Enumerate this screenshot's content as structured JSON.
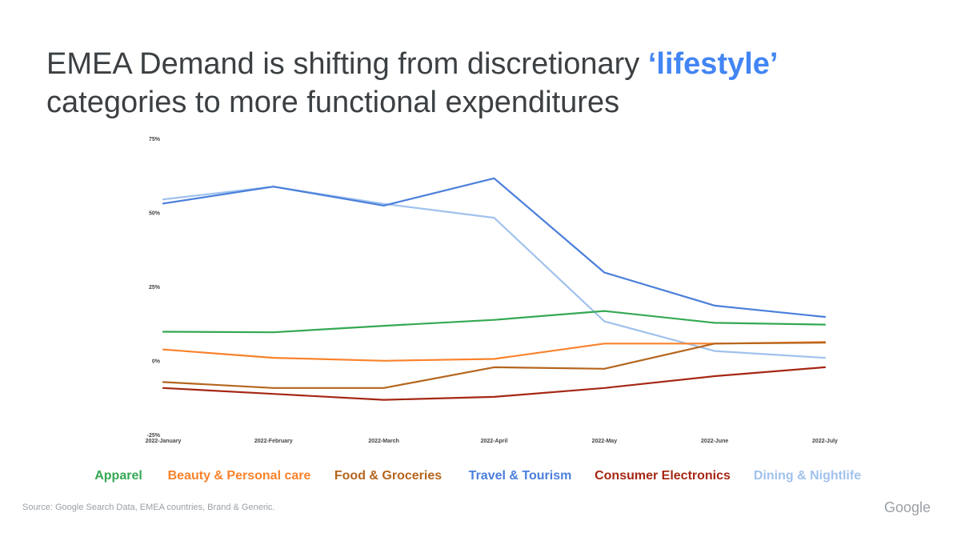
{
  "slide": {
    "title_part1": "EMEA Demand is shifting from discretionary ",
    "title_highlight": "‘lifestyle’",
    "title_line2": "categories to more functional expenditures",
    "source": "Source: Google Search Data, EMEA countries, Brand & Generic.",
    "logo": "Google"
  },
  "chart_data": {
    "type": "line",
    "title": "",
    "xlabel": "",
    "ylabel": "",
    "categories": [
      "2022-January",
      "2022-February",
      "2022-March",
      "2022-April",
      "2022-May",
      "2022-June",
      "2022-July"
    ],
    "ylim": [
      -25,
      75
    ],
    "yticks": [
      "75%",
      "50%",
      "25%",
      "0%",
      "-25%"
    ],
    "ytick_values": [
      75,
      50,
      25,
      0,
      -25
    ],
    "grid": false,
    "legend_position": "bottom",
    "series": [
      {
        "name": "Apparel",
        "color": "#34a853",
        "values": [
          10,
          9.8,
          12,
          14,
          17,
          13,
          12.4
        ]
      },
      {
        "name": "Beauty & Personal care",
        "color": "#f9822b",
        "values": [
          4,
          1.2,
          0.2,
          0.8,
          6,
          6,
          6.5
        ]
      },
      {
        "name": "Food & Groceries",
        "color": "#b5651d",
        "values": [
          -7,
          -9,
          -9,
          -2,
          -2.5,
          6,
          6.3
        ]
      },
      {
        "name": "Travel & Tourism",
        "color": "#4a7fdb",
        "values": [
          53.3,
          59,
          52.6,
          61.8,
          30,
          18.8,
          15
        ]
      },
      {
        "name": "Consumer Electronics",
        "color": "#a52714",
        "values": [
          -9,
          -11,
          -13,
          -12,
          -9,
          -5,
          -2
        ]
      },
      {
        "name": "Dining & Nightlife",
        "color": "#a1c2ed",
        "values": [
          54.7,
          59,
          53.2,
          48.5,
          13.5,
          3.5,
          1.2
        ]
      }
    ]
  }
}
